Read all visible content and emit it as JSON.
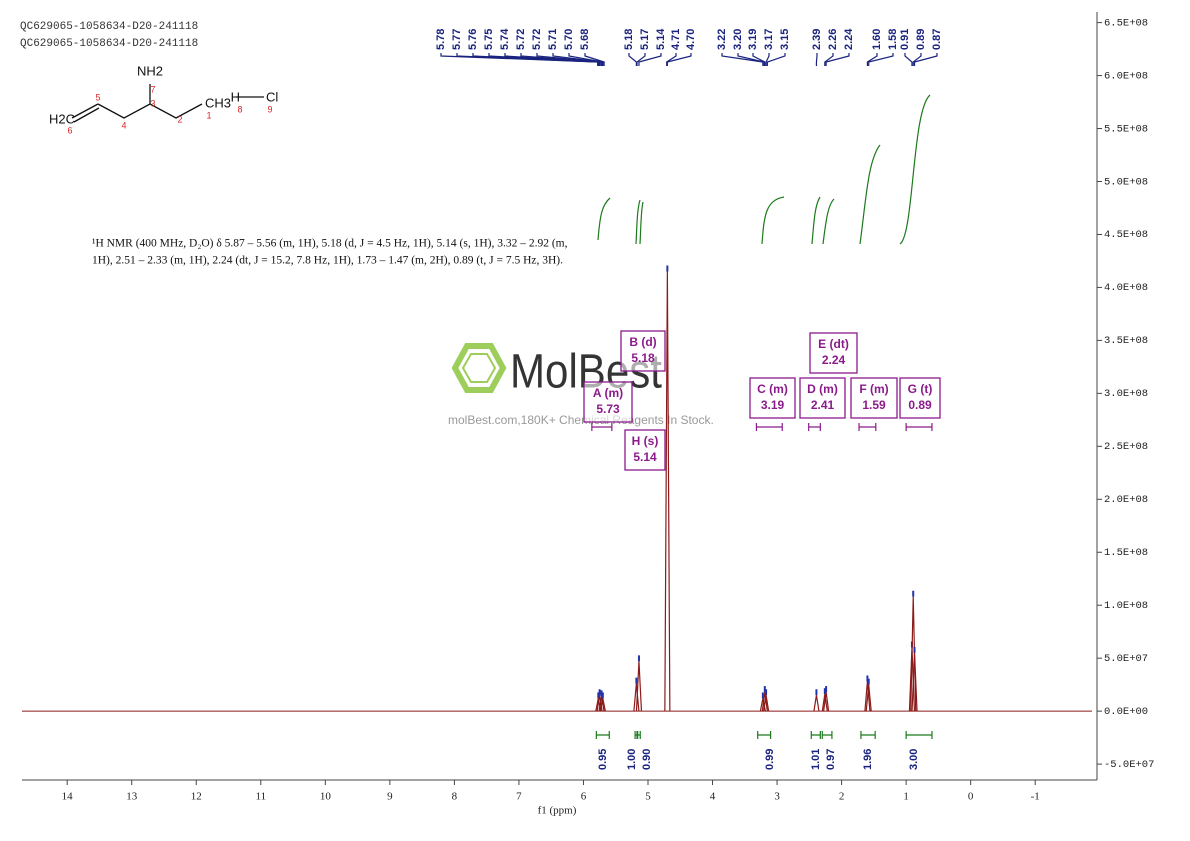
{
  "chart_data": {
    "type": "nmr",
    "header": [
      "QC629065-1058634-D20-241118",
      "QC629065-1058634-D20-241118"
    ],
    "molecule": {
      "groups": [
        "NH2",
        "H2C",
        "CH3",
        "H",
        "Cl"
      ],
      "atom_numbers": [
        "7",
        "5",
        "3",
        "4",
        "2",
        "1",
        "6",
        "8",
        "9"
      ]
    },
    "description": [
      "¹H NMR (400 MHz, D₂O) δ 5.87 – 5.56 (m, 1H), 5.18 (d, J = 4.5 Hz, 1H), 5.14 (s, 1H), 3.32 – 2.92 (m,",
      "1H), 2.51 – 2.33 (m, 1H), 2.24 (dt, J = 15.2, 7.8 Hz, 1H), 1.73 – 1.47 (m, 2H), 0.89 (t, J = 7.5 Hz, 3H)."
    ],
    "watermark": {
      "brand": "MolBest",
      "tagline": "molBest.com,180K+ Chemical Reagents In Stock."
    },
    "xlabel": "f1 (ppm)",
    "xlim": [
      14.7,
      -1.88
    ],
    "xticks": [
      14,
      13,
      12,
      11,
      10,
      9,
      8,
      7,
      6,
      5,
      4,
      3,
      2,
      1,
      0,
      -1
    ],
    "ylim": [
      -65000000,
      660000000
    ],
    "yticks": [
      {
        "value": -50000000,
        "label": "-5.0E+07"
      },
      {
        "value": 0,
        "label": "0.0E+00"
      },
      {
        "value": 50000000,
        "label": "5.0E+07"
      },
      {
        "value": 100000000,
        "label": "1.0E+08"
      },
      {
        "value": 150000000,
        "label": "1.5E+08"
      },
      {
        "value": 200000000,
        "label": "2.0E+08"
      },
      {
        "value": 250000000,
        "label": "2.5E+08"
      },
      {
        "value": 300000000,
        "label": "3.0E+08"
      },
      {
        "value": 350000000,
        "label": "3.5E+08"
      },
      {
        "value": 400000000,
        "label": "4.0E+08"
      },
      {
        "value": 450000000,
        "label": "4.5E+08"
      },
      {
        "value": 500000000,
        "label": "5.0E+08"
      },
      {
        "value": 550000000,
        "label": "5.5E+08"
      },
      {
        "value": 600000000,
        "label": "6.0E+08"
      },
      {
        "value": 650000000,
        "label": "6.5E+08"
      }
    ],
    "spectrum": {
      "color": "#8b1a1a",
      "x": [
        5.77,
        5.75,
        5.72,
        5.7,
        5.18,
        5.14,
        4.7,
        3.22,
        3.19,
        3.17,
        2.39,
        2.26,
        2.24,
        1.6,
        1.58,
        0.91,
        0.89,
        0.87
      ],
      "values": [
        12000000,
        15000000,
        14000000,
        12000000,
        26000000,
        47000000,
        415000000,
        12000000,
        18000000,
        15000000,
        15000000,
        16000000,
        18000000,
        28000000,
        25000000,
        60000000,
        108000000,
        55000000
      ]
    },
    "peak_labels": [
      5.78,
      5.77,
      5.76,
      5.75,
      5.74,
      5.72,
      5.72,
      5.71,
      {
        "value": 5.7,
        "label": "5.70"
      },
      5.68,
      5.18,
      5.17,
      5.14,
      4.71,
      {
        "value": 4.7,
        "label": "4.70"
      },
      3.22,
      {
        "value": 3.2,
        "label": "3.20"
      },
      3.19,
      3.17,
      3.15,
      2.39,
      2.26,
      2.24,
      {
        "value": 1.6,
        "label": "1.60"
      },
      1.58,
      0.91,
      0.89,
      0.87
    ],
    "peak_label_color": "#1a237e",
    "integrals": [
      {
        "value": 0.95,
        "label": "0.95",
        "range": [
          5.8,
          5.6
        ]
      },
      {
        "value": 1.0,
        "label": "1.00",
        "range": [
          5.2,
          5.17
        ]
      },
      {
        "value": 0.9,
        "label": "0.90",
        "range": [
          5.16,
          5.12
        ]
      },
      {
        "value": 0.99,
        "label": "0.99",
        "range": [
          3.3,
          3.1
        ]
      },
      {
        "value": 1.01,
        "label": "1.01",
        "range": [
          2.47,
          2.33
        ]
      },
      {
        "value": 0.97,
        "label": "0.97",
        "range": [
          2.3,
          2.15
        ]
      },
      {
        "value": 1.96,
        "label": "1.96",
        "range": [
          1.7,
          1.48
        ]
      },
      {
        "value": 3.0,
        "label": "3.00",
        "range": [
          1.0,
          0.6
        ]
      }
    ],
    "integral_color": "#1b7a1b",
    "multiplets": [
      {
        "name": "A (m)",
        "shift": 5.73,
        "range": [
          5.87,
          5.56
        ]
      },
      {
        "name": "B (d)",
        "shift": 5.18,
        "range": [
          5.2,
          5.16
        ]
      },
      {
        "name": "H (s)",
        "shift": 5.14,
        "range": [
          5.16,
          5.12
        ]
      },
      {
        "name": "C (m)",
        "shift": 3.19,
        "range": [
          3.32,
          2.92
        ]
      },
      {
        "name": "D (m)",
        "shift": 2.41,
        "range": [
          2.51,
          2.33
        ]
      },
      {
        "name": "E (dt)",
        "shift": 2.24,
        "range": [
          2.3,
          2.18
        ]
      },
      {
        "name": "F (m)",
        "shift": 1.59,
        "range": [
          1.73,
          1.47
        ]
      },
      {
        "name": "G (t)",
        "shift": 0.89,
        "range": [
          1.0,
          0.6
        ]
      }
    ],
    "multiplet_color": "#8b1a8b"
  }
}
